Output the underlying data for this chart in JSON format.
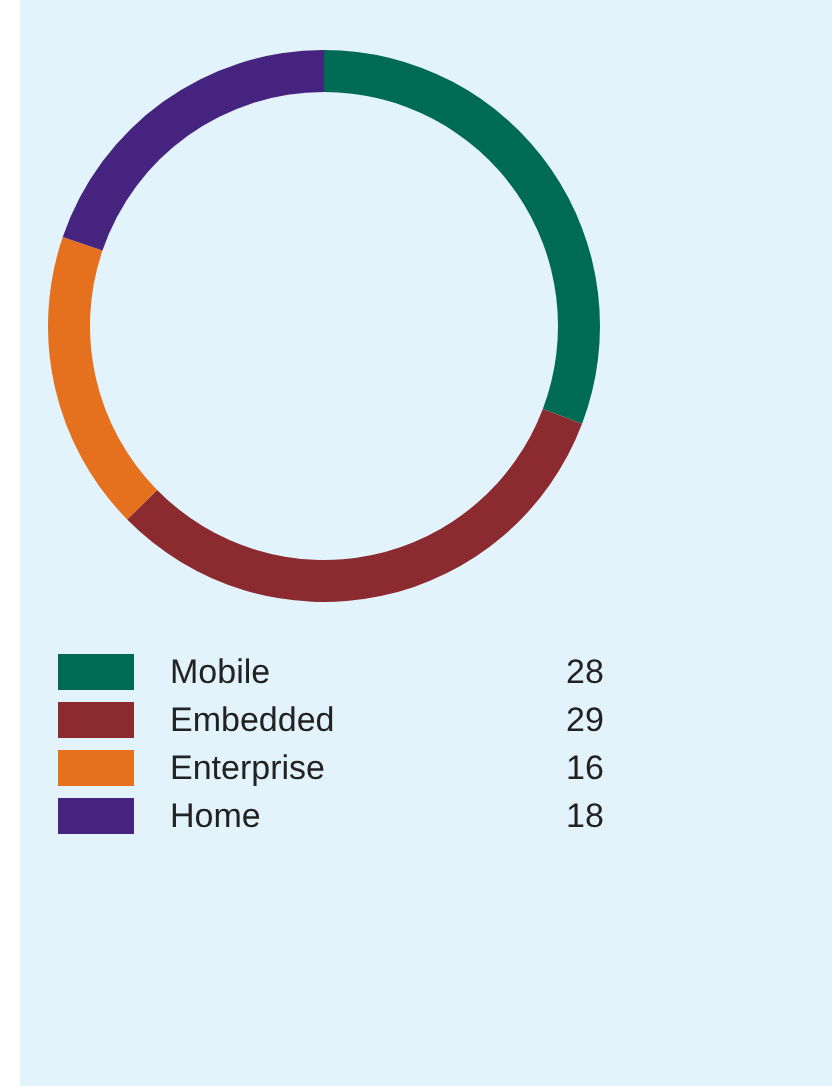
{
  "chart_data": {
    "type": "donut",
    "categories": [
      "Mobile",
      "Embedded",
      "Enterprise",
      "Home"
    ],
    "values": [
      28,
      29,
      16,
      18
    ],
    "colors": [
      "#006b55",
      "#8b2a2f",
      "#e5711e",
      "#46237f"
    ],
    "legend": "bottom left",
    "data_labels": true
  }
}
